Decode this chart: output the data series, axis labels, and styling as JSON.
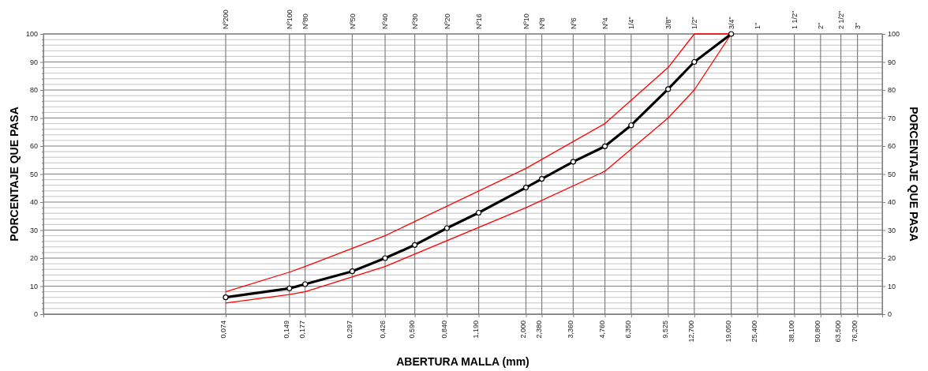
{
  "chart_data": {
    "type": "line",
    "xlabel": "ABERTURA MALLA (mm)",
    "ylabel": "PORCENTAJE QUE PASA",
    "y2label": "PORCENTAJE QUE PASA",
    "log": "x",
    "grid": true,
    "line_style": "solid",
    "xlim": [
      0.01,
      100
    ],
    "ylim": [
      0,
      100
    ],
    "y2lim": [
      0,
      100
    ],
    "xticks": [
      {
        "value": 0.074,
        "label": "0,074"
      },
      {
        "value": 0.149,
        "label": "0,149"
      },
      {
        "value": 0.177,
        "label": "0,177"
      },
      {
        "value": 0.297,
        "label": "0,297"
      },
      {
        "value": 0.426,
        "label": "0,426"
      },
      {
        "value": 0.59,
        "label": "0,590"
      },
      {
        "value": 0.84,
        "label": "0,840"
      },
      {
        "value": 1.19,
        "label": "1,190"
      },
      {
        "value": 2.0,
        "label": "2,000"
      },
      {
        "value": 2.38,
        "label": "2,380"
      },
      {
        "value": 3.36,
        "label": "3,360"
      },
      {
        "value": 4.76,
        "label": "4,760"
      },
      {
        "value": 6.35,
        "label": "6,350"
      },
      {
        "value": 9.525,
        "label": "9,525"
      },
      {
        "value": 12.7,
        "label": "12,700"
      },
      {
        "value": 19.05,
        "label": "19,050"
      },
      {
        "value": 25.4,
        "label": "25,400"
      },
      {
        "value": 38.1,
        "label": "38,100"
      },
      {
        "value": 50.8,
        "label": "50,800"
      },
      {
        "value": 63.5,
        "label": "63,500"
      },
      {
        "value": 76.2,
        "label": "76,200"
      }
    ],
    "annotations": [
      "Nº200",
      "Nº100",
      "Nº80",
      "Nº50",
      "Nº40",
      "Nº30",
      "Nº20",
      "Nº16",
      "Nº10",
      "Nº8",
      "Nº6",
      "Nº4",
      "1/4\"",
      "3/8\"",
      "1/2\"",
      "3/4\"",
      "1\"",
      "1 1/2\"",
      "2\"",
      "2 1/2\"",
      "3\""
    ],
    "yticks": [
      0,
      {
        "value": 2,
        "label": null
      },
      {
        "value": 4,
        "label": null
      },
      {
        "value": 6,
        "label": null
      },
      {
        "value": 8,
        "label": null
      },
      10,
      {
        "value": 12,
        "label": null
      },
      {
        "value": 14,
        "label": null
      },
      {
        "value": 16,
        "label": null
      },
      {
        "value": 18,
        "label": null
      },
      20,
      {
        "value": 22,
        "label": null
      },
      {
        "value": 24,
        "label": null
      },
      {
        "value": 26,
        "label": null
      },
      {
        "value": 28,
        "label": null
      },
      30,
      {
        "value": 32,
        "label": null
      },
      {
        "value": 34,
        "label": null
      },
      {
        "value": 36,
        "label": null
      },
      {
        "value": 38,
        "label": null
      },
      40,
      {
        "value": 42,
        "label": null
      },
      {
        "value": 44,
        "label": null
      },
      {
        "value": 46,
        "label": null
      },
      {
        "value": 48,
        "label": null
      },
      50,
      {
        "value": 52,
        "label": null
      },
      {
        "value": 54,
        "label": null
      },
      {
        "value": 56,
        "label": null
      },
      {
        "value": 58,
        "label": null
      },
      60,
      {
        "value": 62,
        "label": null
      },
      {
        "value": 64,
        "label": null
      },
      {
        "value": 66,
        "label": null
      },
      {
        "value": 68,
        "label": null
      },
      70,
      {
        "value": 72,
        "label": null
      },
      {
        "value": 74,
        "label": null
      },
      {
        "value": 76,
        "label": null
      },
      {
        "value": 78,
        "label": null
      },
      80,
      {
        "value": 82,
        "label": null
      },
      {
        "value": 84,
        "label": null
      },
      {
        "value": 86,
        "label": null
      },
      {
        "value": 88,
        "label": null
      },
      90,
      {
        "value": 92,
        "label": null
      },
      {
        "value": 94,
        "label": null
      },
      {
        "value": 96,
        "label": null
      },
      {
        "value": 98,
        "label": null
      },
      100
    ],
    "y2ticks": [
      0,
      10,
      20,
      30,
      40,
      50,
      60,
      70,
      80,
      90,
      100
    ],
    "series": [
      {
        "color": "#ff0000",
        "marker": "none",
        "x": [
          0.074,
          0.149,
          0.177,
          0.426,
          2.0,
          4.76,
          9.525,
          12.7,
          19.05
        ],
        "values": [
          8,
          15,
          17,
          28,
          52,
          68,
          88,
          100,
          100
        ]
      },
      {
        "color": "#ff0000",
        "marker": "none",
        "x": [
          0.074,
          0.149,
          0.177,
          0.426,
          2.0,
          4.76,
          9.525,
          12.7,
          19.05
        ],
        "values": [
          4,
          7,
          8,
          17,
          38,
          51,
          70,
          80,
          100
        ]
      },
      {
        "color": "#000000",
        "marker": "circle",
        "x": [
          0.074,
          0.149,
          0.177,
          0.297,
          0.426,
          0.59,
          0.84,
          1.19,
          2.0,
          2.38,
          3.36,
          4.76,
          6.35,
          9.525,
          12.7,
          19.05
        ],
        "values": [
          6,
          9.2,
          10.7,
          15.3,
          20,
          24.7,
          30.7,
          36.2,
          45.2,
          48.3,
          54.4,
          59.9,
          67.4,
          80.3,
          90,
          100
        ]
      }
    ]
  }
}
